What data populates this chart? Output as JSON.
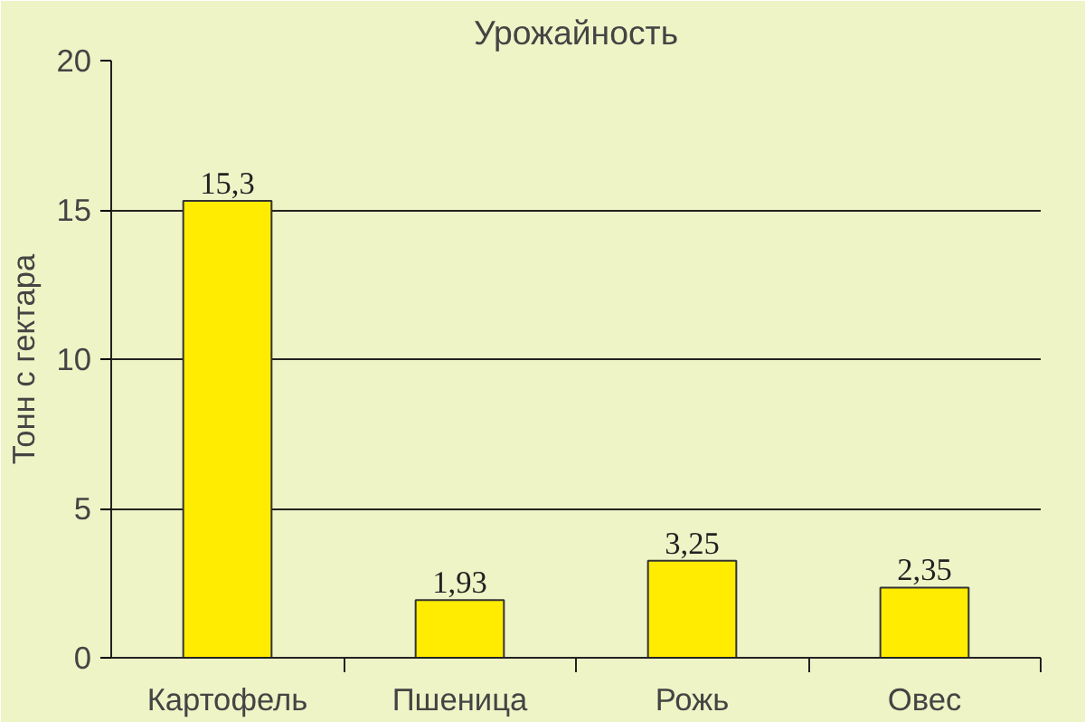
{
  "chart_data": {
    "type": "bar",
    "title": "Урожайность",
    "ylabel": "Тонн с гектара",
    "categories": [
      "Картофель",
      "Пшеница",
      "Рожь",
      "Овес"
    ],
    "values": [
      15.3,
      1.93,
      3.25,
      2.35
    ],
    "value_labels": [
      "15,3",
      "1,93",
      "3,25",
      "2,35"
    ],
    "color": "#ffec00",
    "ylim": [
      0,
      20
    ],
    "yticks": [
      0,
      5,
      10,
      15,
      20
    ],
    "grid": "y"
  }
}
